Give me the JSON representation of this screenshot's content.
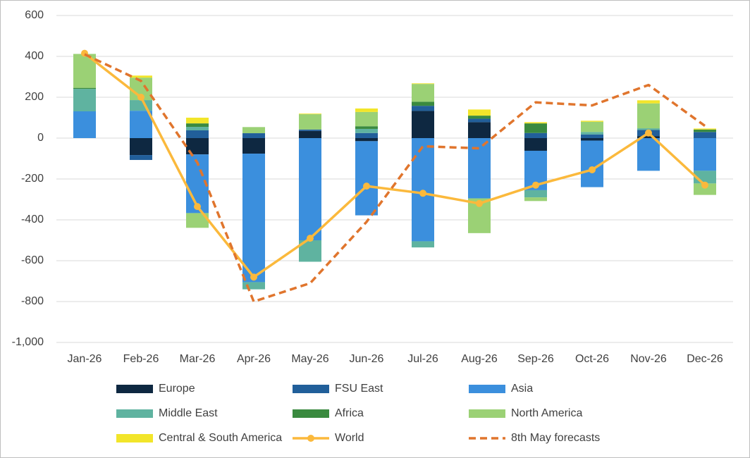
{
  "chart_data": {
    "type": "bar",
    "stacked": true,
    "categories": [
      "Jan-26",
      "Feb-26",
      "Mar-26",
      "Apr-26",
      "May-26",
      "Jun-26",
      "Jul-26",
      "Aug-26",
      "Sep-26",
      "Oct-26",
      "Nov-26",
      "Dec-26"
    ],
    "ylim": [
      -1000,
      600
    ],
    "yticks": [
      600,
      400,
      200,
      0,
      -200,
      -400,
      -600,
      -800,
      {
        "value": -1000,
        "label": "-1,000"
      }
    ],
    "grid": true,
    "series": [
      {
        "name": "Europe",
        "color": "#0e2841",
        "values": [
          0,
          -83,
          -80,
          -76,
          35,
          -15,
          133,
          78,
          -62,
          -12,
          10,
          0
        ]
      },
      {
        "name": "FSU East",
        "color": "#215f9a",
        "values": [
          0,
          -24,
          38,
          24,
          7,
          25,
          25,
          17,
          25,
          18,
          30,
          30
        ]
      },
      {
        "name": "Asia",
        "color": "#3b8fdd",
        "values": [
          131,
          134,
          -287,
          -629,
          -500,
          -363,
          -505,
          -295,
          -193,
          -228,
          -160,
          -160
        ]
      },
      {
        "name": "Middle East",
        "color": "#5fb3a0",
        "values": [
          110,
          52,
          17,
          -35,
          -105,
          20,
          -30,
          0,
          -35,
          12,
          8,
          -62
        ]
      },
      {
        "name": "Africa",
        "color": "#3a8a3f",
        "values": [
          5,
          0,
          17,
          0,
          0,
          13,
          20,
          15,
          47,
          0,
          0,
          12
        ]
      },
      {
        "name": "North America",
        "color": "#9bd175",
        "values": [
          166,
          110,
          -72,
          30,
          75,
          70,
          87,
          -170,
          -18,
          50,
          122,
          -56
        ]
      },
      {
        "name": "Central & South America",
        "color": "#f2e52a",
        "values": [
          0,
          10,
          28,
          0,
          3,
          17,
          3,
          30,
          6,
          5,
          15,
          5
        ]
      },
      {
        "name": "World",
        "color": "#fbb93c",
        "type": "line",
        "marker": true,
        "values": [
          415,
          200,
          -335,
          -680,
          -490,
          -235,
          -270,
          -320,
          -230,
          -155,
          25,
          -230
        ]
      },
      {
        "name": "8th May forecasts",
        "color": "#e0752d",
        "type": "line",
        "dashed": true,
        "values": [
          410,
          280,
          -120,
          -800,
          -710,
          -410,
          -40,
          -50,
          175,
          160,
          260,
          60
        ]
      }
    ]
  }
}
